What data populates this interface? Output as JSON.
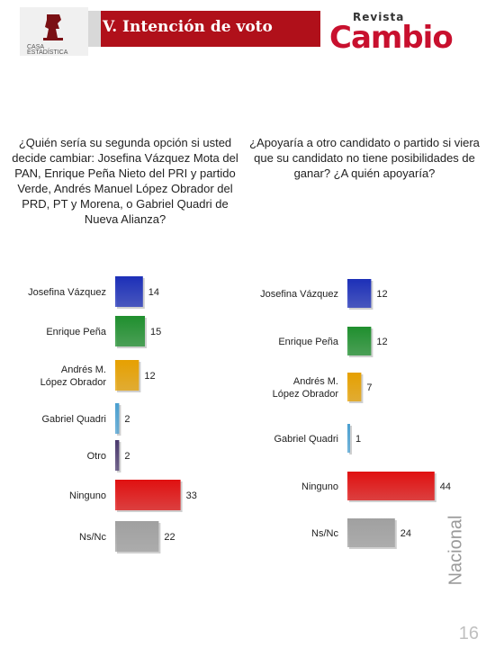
{
  "header": {
    "title": "V. Intención de voto",
    "logo_left_text": "CASA ESTADÍSTICA",
    "logo_right_small": "Revista",
    "logo_right_big": "Cambio"
  },
  "questions": {
    "left": "¿Quién sería su segunda opción si usted decide cambiar: Josefina Vázquez Mota del PAN, Enrique Peña Nieto del PRI y partido Verde, Andrés Manuel López Obrador del PRD, PT y Morena, o Gabriel Quadri de Nueva Alianza?",
    "right": "¿Apoyaría a otro candidato o partido si viera que su candidato no tiene posibilidades de ganar? ¿A quién apoyaría?"
  },
  "side_label": "Nacional",
  "page_number": "16",
  "chart_data": [
    {
      "type": "bar",
      "orientation": "horizontal",
      "title": "",
      "categories": [
        "Josefina Vázquez",
        "Enrique Peña",
        "Andrés M. López Obrador",
        "Gabriel Quadri",
        "Otro",
        "Ninguno",
        "Ns/Nc"
      ],
      "values": [
        14,
        15,
        12,
        2,
        2,
        33,
        22
      ],
      "colors": [
        "#1c2fb8",
        "#1f8f2e",
        "#e6a000",
        "#4a9fd0",
        "#4b3a6e",
        "#e01010",
        "#a0a0a0"
      ]
    },
    {
      "type": "bar",
      "orientation": "horizontal",
      "title": "",
      "categories": [
        "Josefina Vázquez",
        "Enrique Peña",
        "Andrés M. López Obrador",
        "Gabriel Quadri",
        "Ninguno",
        "Ns/Nc"
      ],
      "values": [
        12,
        12,
        7,
        1,
        44,
        24
      ],
      "colors": [
        "#1c2fb8",
        "#1f8f2e",
        "#e6a000",
        "#4a9fd0",
        "#e01010",
        "#a0a0a0"
      ]
    }
  ]
}
